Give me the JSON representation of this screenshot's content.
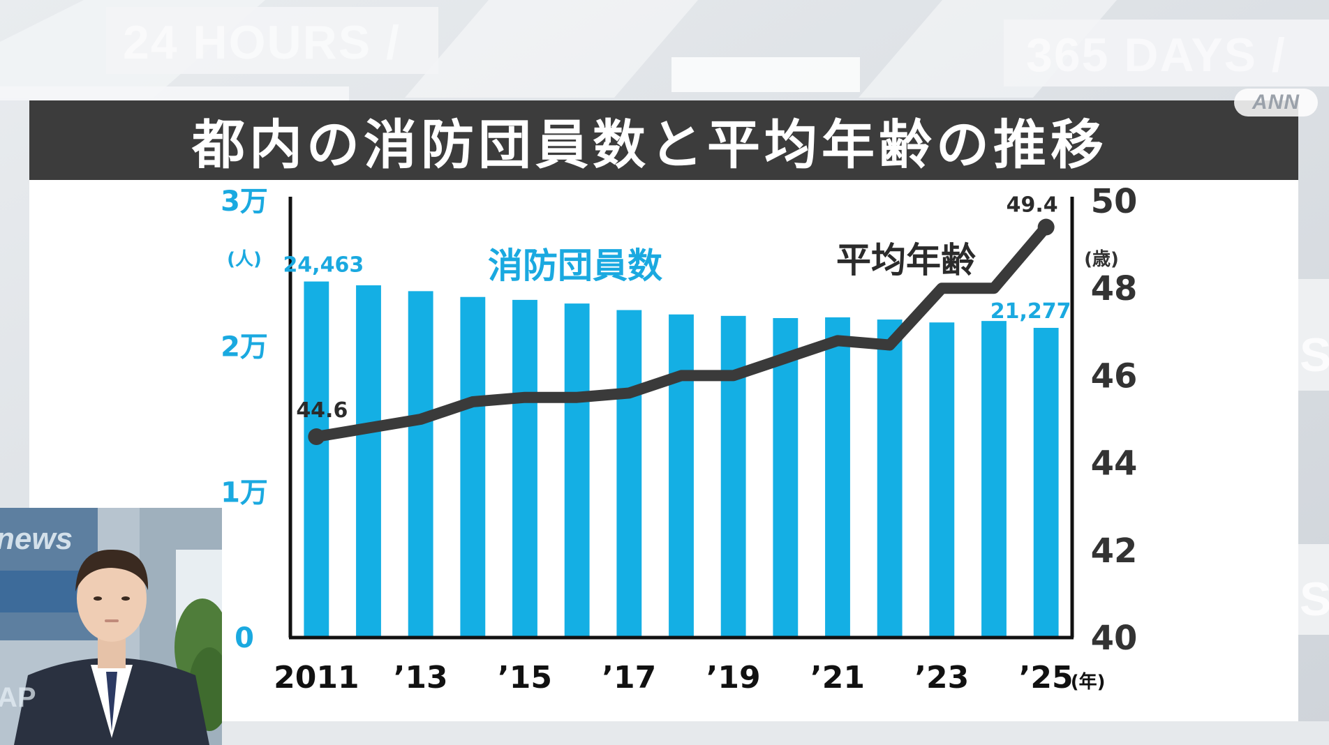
{
  "background": {
    "word_left": "24 HOURS /",
    "word_right": "365 DAYS /",
    "word_side_1": "S",
    "word_side_2": "S"
  },
  "logo": "ANN",
  "title": "都内の消防団員数と平均年齢の推移",
  "presenter": {
    "backdrop_text": "news",
    "backdrop_text_2": "AP"
  },
  "colors": {
    "bar": "#14afe4",
    "line": "#3a3a3a",
    "left_axis_text": "#1aa9e0",
    "right_axis_text": "#333333",
    "title_bar": "#3c3c3c"
  },
  "chart_data": {
    "type": "bar",
    "categories": [
      "2011",
      "2012",
      "2013",
      "2014",
      "2015",
      "2016",
      "2017",
      "2018",
      "2019",
      "2020",
      "2021",
      "2022",
      "2023",
      "2024",
      "2025"
    ],
    "series": [
      {
        "name": "消防団員数",
        "type": "bar",
        "axis": "left",
        "values": [
          24463,
          24200,
          23800,
          23400,
          23200,
          22950,
          22500,
          22200,
          22100,
          21950,
          22000,
          21850,
          21650,
          21750,
          21277
        ]
      },
      {
        "name": "平均年齢",
        "type": "line",
        "axis": "right",
        "values": [
          44.6,
          44.8,
          45.0,
          45.4,
          45.5,
          45.5,
          45.6,
          46.0,
          46.0,
          46.4,
          46.8,
          46.7,
          48.0,
          48.0,
          49.4
        ]
      }
    ],
    "x_tick_labels": [
      {
        "index": 0,
        "label": "2011"
      },
      {
        "index": 2,
        "label": "’13"
      },
      {
        "index": 4,
        "label": "’15"
      },
      {
        "index": 6,
        "label": "’17"
      },
      {
        "index": 8,
        "label": "’19"
      },
      {
        "index": 10,
        "label": "’21"
      },
      {
        "index": 12,
        "label": "’23"
      },
      {
        "index": 14,
        "label": "’25"
      }
    ],
    "x_unit": "(年)",
    "left_axis": {
      "ylim": [
        0,
        30000
      ],
      "ticks": [
        {
          "value": 0,
          "label": "0"
        },
        {
          "value": 10000,
          "label": "1万"
        },
        {
          "value": 20000,
          "label": "2万"
        },
        {
          "value": 30000,
          "label": "3万"
        }
      ],
      "unit": "(人)"
    },
    "right_axis": {
      "ylim": [
        40,
        50
      ],
      "ticks": [
        {
          "value": 40,
          "label": "40"
        },
        {
          "value": 42,
          "label": "42"
        },
        {
          "value": 44,
          "label": "44"
        },
        {
          "value": 46,
          "label": "46"
        },
        {
          "value": 48,
          "label": "48"
        },
        {
          "value": 50,
          "label": "50"
        }
      ],
      "unit": "(歳)"
    },
    "annotations": {
      "bar_first": "24,463",
      "bar_last": "21,277",
      "line_first": "44.6",
      "line_last": "49.4"
    },
    "series_labels": {
      "bar": "消防団員数",
      "line": "平均年齢"
    },
    "grid": false
  }
}
